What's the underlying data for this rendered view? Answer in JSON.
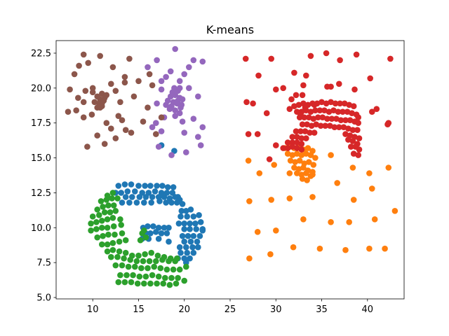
{
  "chart_data": {
    "type": "scatter",
    "title": "K-means",
    "xlabel": "",
    "ylabel": "",
    "xlim": [
      6.0,
      44.0
    ],
    "ylim": [
      4.9,
      23.4
    ],
    "xticks": [
      10,
      15,
      20,
      25,
      30,
      35,
      40
    ],
    "xtick_labels": [
      "10",
      "15",
      "20",
      "25",
      "30",
      "35",
      "40"
    ],
    "yticks": [
      5.0,
      7.5,
      10.0,
      12.5,
      15.0,
      17.5,
      20.0,
      22.5
    ],
    "ytick_labels": [
      "5.0",
      "7.5",
      "10.0",
      "12.5",
      "15.0",
      "17.5",
      "20.0",
      "22.5"
    ],
    "grid": false,
    "legend": false,
    "series": [
      {
        "color": "#1f77b4",
        "x": [
          12.8,
          13.5,
          14.2,
          15.0,
          15.7,
          16.3,
          17.0,
          17.6,
          18.2,
          18.8,
          12.5,
          13.1,
          13.8,
          14.6,
          15.4,
          16.1,
          16.8,
          17.5,
          18.1,
          18.7,
          19.3,
          13.6,
          14.3,
          15.1,
          15.8,
          16.5,
          17.2,
          17.8,
          18.4,
          19.0,
          19.5,
          13.2,
          14.0,
          14.8,
          15.6,
          16.4,
          17.3,
          18.0,
          18.6,
          19.2,
          19.8,
          19.7,
          20.2,
          20.7,
          19.6,
          20.3,
          21.0,
          21.6,
          19.4,
          20.0,
          20.6,
          21.2,
          21.8,
          22.0,
          20.0,
          20.6,
          21.3,
          22.0,
          19.8,
          20.4,
          21.0,
          21.7,
          20.0,
          20.7,
          21.4,
          19.5,
          20.2,
          20.9,
          21.5,
          19.6,
          20.3,
          21.0,
          19.3,
          20.0,
          20.6,
          20.2,
          15.5,
          16.0,
          16.6,
          17.2,
          17.8,
          18.3,
          15.8,
          16.3,
          16.9,
          17.5,
          18.1,
          15.4,
          16.1,
          17.2,
          18.3,
          17.5,
          18.9
        ],
        "y": [
          13.0,
          13.1,
          13.1,
          13.0,
          13.0,
          13.0,
          13.0,
          13.0,
          12.9,
          12.9,
          12.5,
          12.5,
          12.6,
          12.6,
          12.5,
          12.5,
          12.6,
          12.5,
          12.5,
          12.5,
          12.2,
          12.2,
          12.2,
          12.2,
          12.2,
          12.2,
          12.2,
          12.2,
          12.1,
          12.2,
          12.0,
          11.8,
          11.8,
          11.8,
          11.8,
          11.8,
          11.9,
          11.8,
          11.8,
          11.8,
          11.7,
          11.2,
          11.2,
          11.3,
          10.8,
          10.8,
          10.8,
          10.9,
          10.3,
          10.3,
          10.3,
          10.3,
          10.4,
          9.9,
          9.9,
          9.9,
          9.9,
          9.8,
          9.4,
          9.4,
          9.4,
          9.4,
          9.0,
          9.0,
          9.0,
          8.6,
          8.6,
          8.6,
          8.6,
          8.2,
          8.2,
          8.2,
          7.8,
          7.8,
          7.8,
          7.5,
          10.0,
          10.1,
          10.1,
          10.0,
          10.0,
          10.0,
          9.6,
          9.6,
          9.7,
          9.6,
          9.6,
          9.2,
          9.2,
          9.2,
          9.0,
          15.9,
          15.5
        ]
      },
      {
        "color": "#ff7f0e",
        "x": [
          31.0,
          31.5,
          32.0,
          32.5,
          33.0,
          33.5,
          34.0,
          31.3,
          31.8,
          32.3,
          32.8,
          33.3,
          33.8,
          34.3,
          31.6,
          32.1,
          32.6,
          33.1,
          33.6,
          34.1,
          32.0,
          32.5,
          33.0,
          33.5,
          34.0,
          32.3,
          32.8,
          33.3,
          33.8,
          32.9,
          33.4,
          27.0,
          28.2,
          29.8,
          31.5,
          34.0,
          36.0,
          38.4,
          40.2,
          42.3,
          36.7,
          27.1,
          29.5,
          31.5,
          34.0,
          38.5,
          40.5,
          28.0,
          30.0,
          33.0,
          36.0,
          38.0,
          40.8,
          43.0,
          31.9,
          34.8,
          37.6,
          40.2,
          41.9,
          27.1,
          29.4
        ],
        "y": [
          15.7,
          15.8,
          15.7,
          15.8,
          15.6,
          15.7,
          15.5,
          15.3,
          15.2,
          15.3,
          15.2,
          15.3,
          15.2,
          15.0,
          14.8,
          14.7,
          14.8,
          14.6,
          14.7,
          14.5,
          14.3,
          14.2,
          14.3,
          14.1,
          14.0,
          13.9,
          13.8,
          13.9,
          13.7,
          13.5,
          13.4,
          14.8,
          13.9,
          14.5,
          13.9,
          13.8,
          15.2,
          14.3,
          13.9,
          14.3,
          13.2,
          11.9,
          12.0,
          12.1,
          12.2,
          12.0,
          12.8,
          9.7,
          9.8,
          10.6,
          10.4,
          10.4,
          10.6,
          11.2,
          8.6,
          8.5,
          8.4,
          8.5,
          8.5,
          7.8,
          8.1
        ]
      },
      {
        "color": "#2ca02c",
        "x": [
          11.6,
          12.2,
          10.9,
          11.5,
          12.1,
          12.7,
          10.5,
          11.1,
          11.7,
          12.3,
          10.0,
          10.7,
          11.3,
          11.9,
          12.5,
          9.8,
          10.4,
          11.0,
          11.6,
          12.2,
          13.0,
          9.8,
          10.4,
          11.0,
          11.6,
          12.3,
          13.1,
          10.5,
          11.1,
          11.7,
          12.4,
          13.2,
          11.0,
          11.6,
          12.2,
          12.9,
          13.6,
          11.6,
          12.2,
          12.9,
          13.6,
          14.3,
          15.0,
          15.7,
          16.4,
          17.1,
          17.8,
          18.5,
          19.2,
          12.0,
          12.7,
          13.4,
          14.1,
          14.8,
          15.5,
          16.2,
          16.9,
          17.6,
          18.3,
          19.0,
          12.5,
          13.2,
          13.9,
          14.6,
          15.3,
          16.0,
          16.7,
          17.4,
          18.1,
          18.8,
          19.5,
          20.2,
          13.0,
          13.7,
          14.4,
          15.1,
          15.8,
          16.5,
          17.2,
          17.9,
          18.6,
          19.3,
          20.0,
          12.8,
          13.5,
          14.2,
          14.9,
          15.6,
          16.3,
          17.0,
          17.7,
          18.4,
          19.1,
          15.4,
          15.8,
          15.2,
          15.6
        ],
        "y": [
          12.3,
          12.5,
          11.9,
          12.0,
          12.1,
          12.1,
          11.3,
          11.5,
          11.6,
          11.6,
          10.8,
          10.9,
          11.1,
          11.1,
          11.2,
          10.3,
          10.4,
          10.5,
          10.6,
          10.7,
          10.6,
          9.8,
          9.9,
          10.0,
          10.0,
          10.1,
          10.2,
          9.3,
          9.4,
          9.5,
          9.5,
          9.6,
          8.8,
          8.8,
          8.9,
          9.0,
          9.1,
          8.3,
          8.4,
          8.3,
          8.2,
          8.0,
          8.0,
          8.1,
          8.2,
          8.0,
          7.9,
          7.8,
          7.8,
          7.9,
          7.9,
          7.8,
          7.7,
          7.6,
          7.6,
          7.6,
          7.6,
          7.7,
          7.6,
          7.6,
          7.3,
          7.3,
          7.2,
          7.2,
          7.1,
          7.1,
          7.2,
          7.1,
          7.0,
          7.0,
          7.0,
          7.2,
          6.6,
          6.6,
          6.6,
          6.5,
          6.5,
          6.6,
          6.5,
          6.4,
          6.4,
          6.4,
          6.2,
          6.1,
          6.1,
          6.1,
          6.0,
          6.0,
          6.0,
          6.0,
          6.0,
          5.9,
          6.0,
          9.6,
          9.3,
          9.1,
          9.8
        ]
      },
      {
        "color": "#d62728",
        "x": [
          32.0,
          32.5,
          33.0,
          33.5,
          34.0,
          34.5,
          35.0,
          35.5,
          36.0,
          36.5,
          37.0,
          37.5,
          38.0,
          38.5,
          32.3,
          32.8,
          33.3,
          33.8,
          34.3,
          34.8,
          35.3,
          35.8,
          36.3,
          36.8,
          37.3,
          37.8,
          38.3,
          38.8,
          32.6,
          33.1,
          33.6,
          34.1,
          34.6,
          35.1,
          35.6,
          36.1,
          36.6,
          37.1,
          37.6,
          38.1,
          38.6,
          39.0,
          32.9,
          33.4,
          33.9,
          34.4,
          34.9,
          35.4,
          35.9,
          36.4,
          36.9,
          37.4,
          37.9,
          38.4,
          38.9,
          32.2,
          32.7,
          33.2,
          33.7,
          34.2,
          37.6,
          38.1,
          38.6,
          39.1,
          31.8,
          32.3,
          32.8,
          33.3,
          37.9,
          38.4,
          38.9,
          31.3,
          31.8,
          32.3,
          32.8,
          38.2,
          38.7,
          39.1,
          30.8,
          31.3,
          31.8,
          32.3,
          32.8,
          38.5,
          39.0,
          31.7,
          32.2,
          32.9,
          33.2,
          32.7,
          26.7,
          28.1,
          29.5,
          30.8,
          32.0,
          33.8,
          35.5,
          37.0,
          38.8,
          40.3,
          42.5,
          27.5,
          29.0,
          30.0,
          31.5,
          33.3,
          34.2,
          35.6,
          36.9,
          38.6,
          41.0,
          42.2,
          26.8,
          28.0,
          30.0,
          33.0,
          36.0,
          39.0,
          40.5,
          42.3,
          27.0,
          29.3
        ],
        "y": [
          18.7,
          18.8,
          18.9,
          18.8,
          18.9,
          18.9,
          19.0,
          18.9,
          19.0,
          18.9,
          18.9,
          18.9,
          18.8,
          18.7,
          18.3,
          18.3,
          18.4,
          18.3,
          18.4,
          18.4,
          18.4,
          18.3,
          18.4,
          18.3,
          18.3,
          18.3,
          18.2,
          18.1,
          17.9,
          17.9,
          17.9,
          17.8,
          17.9,
          17.9,
          17.8,
          17.8,
          17.8,
          17.7,
          17.7,
          17.7,
          17.6,
          17.5,
          17.4,
          17.4,
          17.3,
          17.4,
          17.3,
          17.3,
          17.3,
          17.2,
          17.2,
          17.2,
          17.1,
          17.0,
          17.0,
          16.9,
          16.9,
          16.9,
          16.8,
          16.8,
          16.7,
          16.6,
          16.5,
          16.4,
          16.5,
          16.5,
          16.4,
          16.4,
          16.3,
          16.2,
          16.0,
          16.1,
          16.1,
          16.1,
          16.0,
          15.8,
          15.8,
          15.6,
          15.7,
          15.7,
          15.8,
          15.7,
          15.6,
          15.3,
          15.2,
          19.2,
          19.5,
          19.5,
          18.6,
          18.1,
          22.1,
          20.9,
          22.1,
          20.0,
          21.1,
          22.3,
          22.5,
          22.0,
          22.4,
          20.7,
          22.1,
          18.9,
          18.2,
          19.9,
          18.5,
          20.9,
          18.8,
          20.1,
          20.3,
          19.9,
          18.5,
          17.4,
          19.0,
          16.7,
          15.9,
          20.2,
          20.1,
          17.9,
          18.3,
          17.5,
          16.7,
          14.9
        ]
      },
      {
        "color": "#9467bd",
        "x": [
          18.5,
          19.0,
          19.5,
          18.2,
          18.8,
          19.3,
          19.8,
          18.0,
          18.6,
          19.2,
          19.7,
          18.4,
          19.0,
          19.6,
          18.7,
          19.3,
          18.9,
          20.0,
          20.5,
          19.0,
          17.0,
          16.0,
          17.5,
          19.5,
          21.0,
          22.0,
          18.0,
          20.5,
          21.5,
          17.5,
          18.5,
          19.5,
          21.0,
          22.0,
          16.5,
          17.5,
          19.0,
          20.0,
          21.5,
          20.2,
          17.2,
          18.6,
          21.8,
          17.0,
          19.5,
          16.9,
          17.8,
          19.8
        ],
        "y": [
          19.4,
          19.5,
          19.3,
          19.1,
          19.0,
          19.1,
          19.2,
          18.8,
          18.7,
          18.9,
          18.8,
          18.5,
          18.4,
          18.6,
          19.7,
          19.8,
          20.0,
          21.0,
          21.5,
          22.8,
          22.0,
          21.5,
          20.5,
          20.5,
          22.0,
          21.9,
          20.8,
          20.0,
          19.4,
          19.9,
          21.2,
          20.0,
          17.8,
          17.2,
          17.2,
          16.9,
          18.0,
          16.8,
          16.5,
          15.4,
          15.8,
          15.2,
          15.9,
          18.9,
          18.2,
          17.5,
          17.9,
          17.6
        ]
      },
      {
        "color": "#8c564b",
        "x": [
          10.5,
          11.0,
          11.5,
          10.8,
          11.3,
          10.2,
          10.7,
          11.2,
          10.5,
          11.0,
          9.0,
          9.5,
          10.0,
          12.0,
          12.5,
          13.0,
          12.2,
          13.5,
          14.0,
          14.5,
          15.0,
          8.5,
          8.0,
          7.5,
          9.2,
          10.0,
          8.4,
          9.0,
          8.2,
          7.3,
          10.8,
          12.8,
          13.2,
          14.2,
          15.5,
          16.0,
          16.5,
          11.5,
          12.5,
          9.0,
          9.9,
          11.0,
          13.6,
          12.0,
          10.5,
          11.3,
          9.4,
          16.9,
          17.5,
          16.2,
          13.5,
          10.8
        ],
        "y": [
          19.4,
          19.6,
          19.5,
          19.2,
          19.3,
          19.0,
          18.9,
          19.1,
          18.6,
          18.7,
          22.4,
          21.8,
          20.0,
          20.3,
          19.8,
          19.0,
          21.5,
          20.8,
          22.1,
          19.4,
          20.5,
          21.6,
          21.0,
          19.9,
          19.8,
          19.7,
          19.3,
          19.0,
          18.4,
          18.3,
          18.6,
          18.0,
          17.7,
          16.8,
          17.6,
          18.6,
          20.2,
          17.5,
          16.4,
          17.9,
          18.1,
          18.9,
          17.0,
          17.1,
          16.6,
          16.0,
          15.8,
          16.7,
          17.9,
          21.0,
          20.4,
          22.3
        ]
      }
    ]
  }
}
